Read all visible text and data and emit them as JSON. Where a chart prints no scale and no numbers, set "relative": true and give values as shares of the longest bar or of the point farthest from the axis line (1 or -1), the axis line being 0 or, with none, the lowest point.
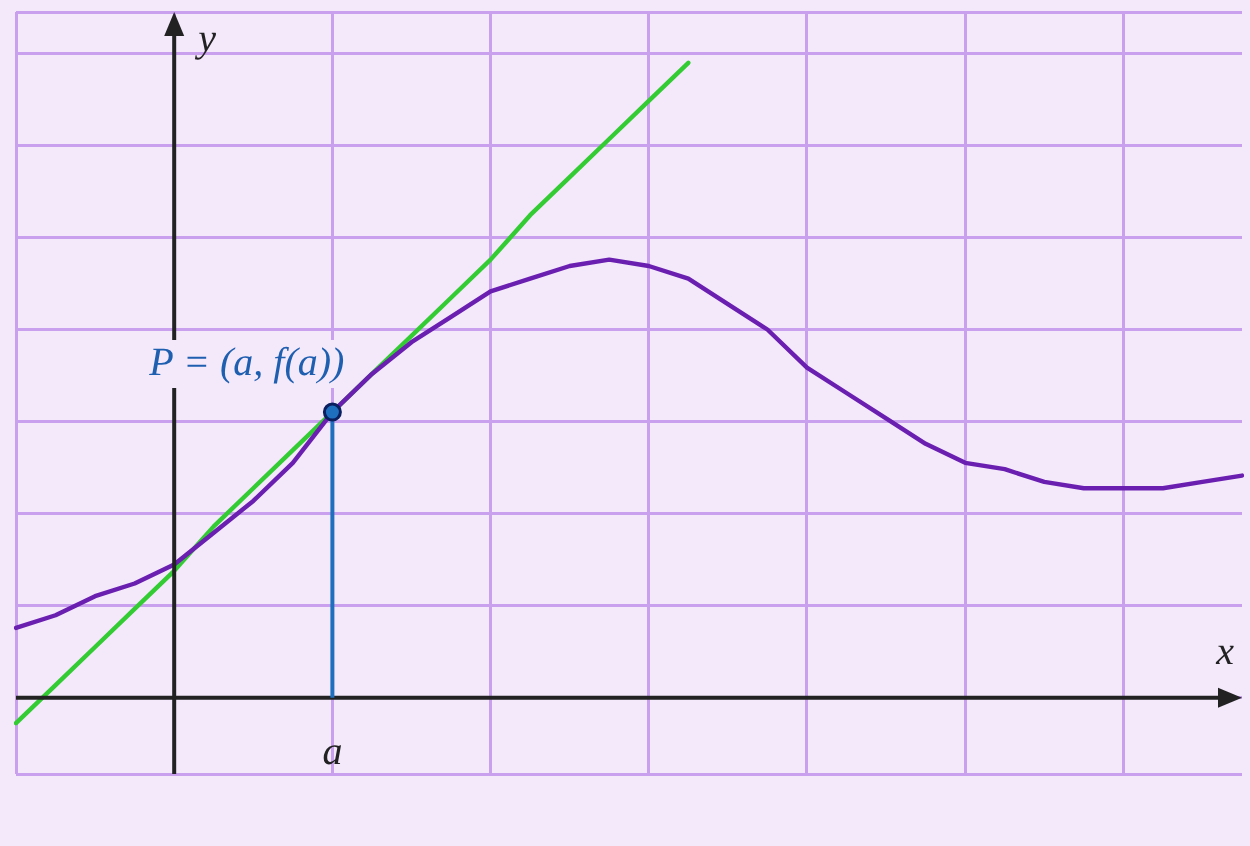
{
  "chart_data": {
    "type": "line",
    "relative": true,
    "xlabel": "x",
    "ylabel": "y",
    "grid": true,
    "legend": false,
    "marker": "none",
    "line_style": "solid",
    "categories": [
      null,
      null,
      null,
      null,
      null,
      null,
      null,
      null,
      null,
      null,
      null,
      null,
      null,
      null,
      null,
      null,
      null,
      null,
      null,
      null,
      null,
      null,
      null,
      null,
      null,
      null,
      null,
      null,
      null,
      null,
      null,
      null
    ],
    "series": [
      {
        "color": "#6a1fb0",
        "values": [
          0.11,
          0.13,
          0.16,
          0.18,
          0.21,
          0.26,
          0.31,
          0.37,
          0.45,
          0.51,
          0.56,
          0.6,
          0.64,
          0.66,
          0.68,
          0.69,
          0.68,
          0.66,
          0.62,
          0.58,
          0.52,
          0.48,
          0.44,
          0.4,
          0.37,
          0.36,
          0.34,
          0.33,
          0.33,
          0.33,
          0.34,
          0.35
        ]
      },
      {
        "color": "#33cc33",
        "values": [
          -0.04,
          0.02,
          0.08,
          0.14,
          0.2,
          0.27,
          0.33,
          0.39,
          0.45,
          0.51,
          0.57,
          0.63,
          0.69,
          0.76,
          0.82,
          0.88,
          0.94,
          1.0,
          null,
          null,
          null,
          null,
          null,
          null,
          null,
          null,
          null,
          null,
          null,
          null,
          null,
          null
        ]
      }
    ],
    "annotations": [
      "P = (a, f(a))",
      "a"
    ]
  }
}
